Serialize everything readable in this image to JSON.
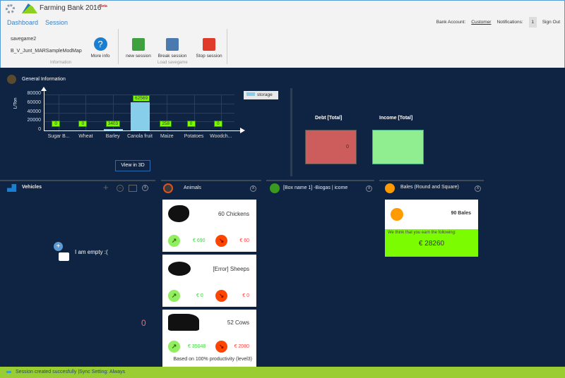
{
  "app": {
    "title": "Farming Bank 2016",
    "badge": "Beta"
  },
  "nav": {
    "tabs": [
      "Dashboard",
      "Session"
    ]
  },
  "header": {
    "bank_account_label": "Bank Account:",
    "bank_account_value": "Customer",
    "notifications_label": "Notifications:",
    "notifications_count": "1",
    "sign_out": "Sign Out"
  },
  "ribbon": {
    "savegame": "savegame2",
    "map": "B_V_Junt_MARSampleModMap",
    "more_info": "More info",
    "information_group": "Information",
    "new_session": "new session",
    "break_session": "Break session",
    "stop_session": "Stop session",
    "load_group": "Load savegame"
  },
  "general": {
    "title": "General Information",
    "view_3d": "View in 3D",
    "debt_title": "Debt [Total]",
    "debt_value": "0",
    "income_title": "Income [Total]",
    "debt_color": "#cd5c5c",
    "income_color": "#90ee90"
  },
  "chart_data": {
    "type": "bar",
    "categories": [
      "Sugar B...",
      "Wheat",
      "Barley",
      "Canola fruit",
      "Maize",
      "Potatoes",
      "Woodch..."
    ],
    "series": [
      {
        "name": "storage",
        "values": [
          0,
          0,
          3403,
          62569,
          258,
          0,
          0
        ],
        "color": "#87ceeb"
      }
    ],
    "ylabel": "L/Ton",
    "ylim": [
      0,
      80000
    ],
    "yticks": [
      "80000",
      "60000",
      "40000",
      "20000",
      "0"
    ],
    "grid": true,
    "legend": "right"
  },
  "vehicles": {
    "title": "Vehicles",
    "empty": "I am empty :(",
    "total": "0",
    "close": "X"
  },
  "animals": {
    "title": "Animals",
    "close": "X",
    "items": [
      {
        "label": "60 Chickens",
        "income": "€ 690",
        "cost": "€ 60"
      },
      {
        "label": "[Error] Sheeps",
        "income": "€ 0",
        "cost": "€ 0"
      },
      {
        "label": "52 Cows",
        "income": "€ 35048",
        "cost": "€ 2080",
        "note": "Based on 100% productivity (level3)"
      }
    ]
  },
  "biogas": {
    "title": "[Box name 1] -Biogas | icome",
    "close": "X"
  },
  "bales": {
    "title": "Bales (Round and Square)",
    "close": "X",
    "count": "90 Bales",
    "earn_text": "We think that you earn the following:",
    "earn_value": "€ 28260"
  },
  "status": {
    "text": "Session created succesfully  |Sync Setting: Always"
  }
}
